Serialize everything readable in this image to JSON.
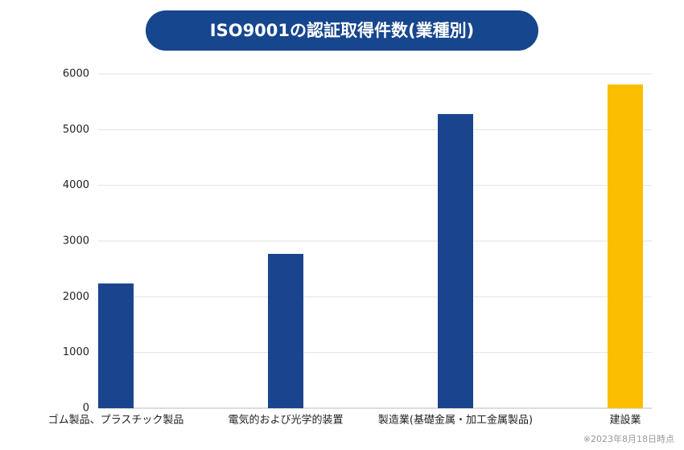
{
  "chart_data": {
    "type": "bar",
    "title": "ISO9001の認証取得件数(業種別)",
    "categories": [
      "ゴム製品、プラスチック製品",
      "電気的および光学的装置",
      "製造業(基礎金属・加工金属製品)",
      "建設業"
    ],
    "values": [
      2240,
      2770,
      5280,
      5810
    ],
    "colors": [
      "#1a448e",
      "#1a448e",
      "#1a448e",
      "#fbbd00"
    ],
    "ylim": [
      0,
      6000
    ],
    "yticks": [
      0,
      1000,
      2000,
      3000,
      4000,
      5000,
      6000
    ],
    "grid": true,
    "annotation": "※2023年8月18日時点"
  }
}
